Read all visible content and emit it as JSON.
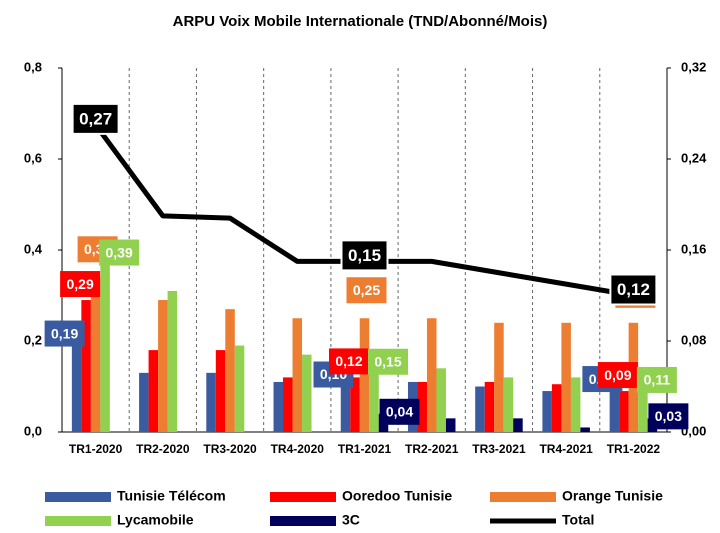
{
  "chart_data": {
    "type": "bar",
    "title": "ARPU Voix Mobile Internationale (TND/Abonné/Mois)",
    "categories": [
      "TR1-2020",
      "TR2-2020",
      "TR3-2020",
      "TR4-2020",
      "TR1-2021",
      "TR2-2021",
      "TR3-2021",
      "TR4-2021",
      "TR1-2022"
    ],
    "series": [
      {
        "name": "Tunisie Télécom",
        "color": "#3a5ba0",
        "values": [
          0.19,
          0.13,
          0.13,
          0.11,
          0.1,
          0.11,
          0.1,
          0.09,
          0.09
        ],
        "value_labels": [
          "0,19",
          null,
          null,
          null,
          "0,10",
          null,
          null,
          null,
          "0,09"
        ]
      },
      {
        "name": "Ooredoo Tunisie",
        "color": "#ff0000",
        "values": [
          0.29,
          0.18,
          0.18,
          0.12,
          0.12,
          0.11,
          0.11,
          0.105,
          0.09
        ],
        "value_labels": [
          "0,29",
          null,
          null,
          null,
          "0,12",
          null,
          null,
          null,
          "0,09"
        ]
      },
      {
        "name": "Orange Tunisie",
        "color": "#ed7d31",
        "values": [
          0.34,
          0.29,
          0.27,
          0.25,
          0.25,
          0.25,
          0.24,
          0.24,
          0.24
        ],
        "value_labels": [
          "0,34",
          null,
          null,
          null,
          "0,25",
          null,
          null,
          null,
          "0,24"
        ]
      },
      {
        "name": "Lycamobile",
        "color": "#92d050",
        "values": [
          0.39,
          0.31,
          0.19,
          0.17,
          0.15,
          0.14,
          0.12,
          0.12,
          0.11
        ],
        "value_labels": [
          "0,39",
          null,
          null,
          null,
          "0,15",
          null,
          null,
          null,
          "0,11"
        ]
      },
      {
        "name": "3C",
        "color": "#00005c",
        "values": [
          null,
          null,
          null,
          null,
          0.04,
          0.03,
          0.03,
          0.01,
          0.03
        ],
        "value_labels": [
          null,
          null,
          null,
          null,
          "0,04",
          null,
          null,
          null,
          "0,03"
        ]
      },
      {
        "name": "Total",
        "color": "#000000",
        "type": "line",
        "axis": "y2",
        "values": [
          0.27,
          0.19,
          0.188,
          0.15,
          0.15,
          0.15,
          0.14,
          0.13,
          0.12
        ],
        "value_labels": [
          "0,27",
          null,
          null,
          null,
          "0,15",
          null,
          null,
          null,
          "0,12"
        ]
      }
    ],
    "ylim": [
      0,
      0.8
    ],
    "yticks": [
      {
        "value": 0,
        "label": "0,0"
      },
      {
        "value": 0.2,
        "label": "0,2"
      },
      {
        "value": 0.4,
        "label": "0,4"
      },
      {
        "value": 0.6,
        "label": "0,6"
      },
      {
        "value": 0.8,
        "label": "0,8"
      }
    ],
    "y2lim": [
      0,
      0.32
    ],
    "y2ticks": [
      {
        "value": 0,
        "label": "0,00"
      },
      {
        "value": 0.08,
        "label": "0,08"
      },
      {
        "value": 0.16,
        "label": "0,16"
      },
      {
        "value": 0.24,
        "label": "0,24"
      },
      {
        "value": 0.32,
        "label": "0,32"
      }
    ],
    "legend": "bottom"
  }
}
